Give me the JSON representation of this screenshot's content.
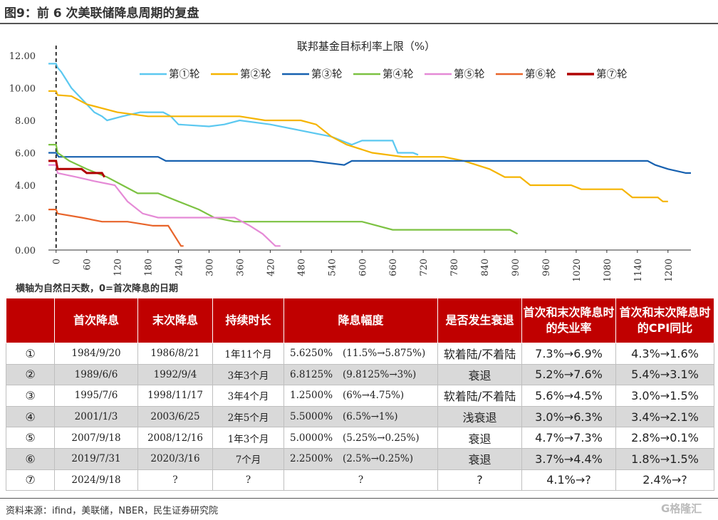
{
  "figure_title": "图9：前 6 次美联储降息周期的复盘",
  "axis_note": "横轴为自然日天数，0=首次降息的日期",
  "source": "资料来源：ifind，美联储，NBER，民生证券研究院",
  "watermark": "格隆汇",
  "colors": {
    "header_bg": "#c00000",
    "stripe": "#d9d9d9"
  },
  "chart_data": {
    "type": "line",
    "title": "联邦基金目标利率上限（%）",
    "xlim": [
      -15,
      1245
    ],
    "ylim": [
      0,
      12
    ],
    "x_ticks": [
      0,
      60,
      120,
      180,
      240,
      300,
      360,
      420,
      480,
      540,
      600,
      660,
      720,
      780,
      840,
      900,
      960,
      1020,
      1080,
      1140,
      1200
    ],
    "y_ticks": [
      "0.00",
      "2.00",
      "4.00",
      "6.00",
      "8.00",
      "10.00",
      "12.00"
    ],
    "vline_x": 0,
    "legend_position": "top",
    "series": [
      {
        "name": "第①轮",
        "color": "#5bc8f0",
        "points": [
          [
            -30,
            11.5
          ],
          [
            0,
            11.5
          ],
          [
            3,
            11.25
          ],
          [
            10,
            11.0
          ],
          [
            20,
            10.5
          ],
          [
            30,
            10.0
          ],
          [
            45,
            9.5
          ],
          [
            60,
            9.0
          ],
          [
            75,
            8.5
          ],
          [
            90,
            8.25
          ],
          [
            100,
            8.0
          ],
          [
            130,
            8.25
          ],
          [
            165,
            8.5
          ],
          [
            210,
            8.5
          ],
          [
            225,
            8.25
          ],
          [
            240,
            7.75
          ],
          [
            300,
            7.625
          ],
          [
            330,
            7.75
          ],
          [
            360,
            8.0
          ],
          [
            420,
            7.75
          ],
          [
            540,
            7.0
          ],
          [
            580,
            6.5
          ],
          [
            600,
            6.75
          ],
          [
            660,
            6.75
          ],
          [
            670,
            6.0
          ],
          [
            700,
            6.0
          ],
          [
            710,
            5.875
          ]
        ]
      },
      {
        "name": "第②轮",
        "color": "#f5b400",
        "points": [
          [
            -30,
            9.8125
          ],
          [
            0,
            9.8125
          ],
          [
            3,
            9.5625
          ],
          [
            30,
            9.5
          ],
          [
            60,
            9.0
          ],
          [
            120,
            8.5
          ],
          [
            180,
            8.25
          ],
          [
            240,
            8.25
          ],
          [
            360,
            8.25
          ],
          [
            410,
            8.0
          ],
          [
            480,
            8.0
          ],
          [
            510,
            7.75
          ],
          [
            540,
            7.0
          ],
          [
            570,
            6.5
          ],
          [
            620,
            6.0
          ],
          [
            680,
            5.75
          ],
          [
            760,
            5.75
          ],
          [
            800,
            5.5
          ],
          [
            850,
            5.0
          ],
          [
            880,
            4.5
          ],
          [
            910,
            4.5
          ],
          [
            930,
            4.0
          ],
          [
            1010,
            4.0
          ],
          [
            1030,
            3.75
          ],
          [
            1110,
            3.75
          ],
          [
            1130,
            3.25
          ],
          [
            1180,
            3.25
          ],
          [
            1190,
            3.0
          ],
          [
            1200,
            3.0
          ]
        ]
      },
      {
        "name": "第③轮",
        "color": "#1761b0",
        "points": [
          [
            -30,
            6.0
          ],
          [
            0,
            6.0
          ],
          [
            5,
            5.75
          ],
          [
            200,
            5.75
          ],
          [
            215,
            5.5
          ],
          [
            420,
            5.5
          ],
          [
            500,
            5.5
          ],
          [
            565,
            5.25
          ],
          [
            580,
            5.5
          ],
          [
            1160,
            5.5
          ],
          [
            1175,
            5.25
          ],
          [
            1200,
            5.0
          ],
          [
            1235,
            4.75
          ],
          [
            1245,
            4.75
          ]
        ]
      },
      {
        "name": "第④轮",
        "color": "#7cc242",
        "points": [
          [
            -30,
            6.5
          ],
          [
            0,
            6.5
          ],
          [
            3,
            6.0
          ],
          [
            26,
            5.5
          ],
          [
            60,
            5.0
          ],
          [
            100,
            4.5
          ],
          [
            130,
            4.0
          ],
          [
            160,
            3.5
          ],
          [
            200,
            3.5
          ],
          [
            240,
            3.0
          ],
          [
            280,
            2.5
          ],
          [
            310,
            2.0
          ],
          [
            350,
            1.75
          ],
          [
            410,
            1.75
          ],
          [
            600,
            1.75
          ],
          [
            660,
            1.25
          ],
          [
            890,
            1.25
          ],
          [
            905,
            1.0
          ]
        ]
      },
      {
        "name": "第⑤轮",
        "color": "#e58ad6",
        "points": [
          [
            -30,
            5.25
          ],
          [
            0,
            5.25
          ],
          [
            3,
            4.75
          ],
          [
            40,
            4.5
          ],
          [
            75,
            4.25
          ],
          [
            115,
            4.0
          ],
          [
            140,
            3.0
          ],
          [
            170,
            2.25
          ],
          [
            200,
            2.0
          ],
          [
            260,
            2.0
          ],
          [
            350,
            2.0
          ],
          [
            380,
            1.5
          ],
          [
            405,
            1.0
          ],
          [
            430,
            0.25
          ],
          [
            440,
            0.25
          ]
        ]
      },
      {
        "name": "第⑥轮",
        "color": "#e8642a",
        "points": [
          [
            -30,
            2.5
          ],
          [
            0,
            2.5
          ],
          [
            3,
            2.25
          ],
          [
            50,
            2.0
          ],
          [
            90,
            1.75
          ],
          [
            140,
            1.75
          ],
          [
            190,
            1.5
          ],
          [
            220,
            1.5
          ],
          [
            230,
            1.0
          ],
          [
            245,
            0.25
          ],
          [
            250,
            0.25
          ]
        ]
      },
      {
        "name": "第⑦轮",
        "color": "#b00000",
        "points": [
          [
            -30,
            5.5
          ],
          [
            0,
            5.5
          ],
          [
            3,
            5.0
          ],
          [
            50,
            5.0
          ],
          [
            60,
            4.75
          ],
          [
            90,
            4.75
          ],
          [
            95,
            4.5
          ]
        ]
      }
    ]
  },
  "table": {
    "headers": [
      "",
      "首次降息",
      "末次降息",
      "持续时长",
      "降息幅度",
      "是否发生衰退",
      "首次和末次降息时的失业率",
      "首次和末次降息时的CPI同比"
    ],
    "rows": [
      {
        "id": "①",
        "first": "1984/9/20",
        "last": "1986/8/21",
        "duration": "1年11个月",
        "amp_pct": "5.6250%",
        "amp_range": "(11.5%→5.875%)",
        "recession": "软着陆/不着陆",
        "unemp": "7.3%→6.9%",
        "cpi": "4.3%→1.6%"
      },
      {
        "id": "②",
        "first": "1989/6/6",
        "last": "1992/9/4",
        "duration": "3年3个月",
        "amp_pct": "6.8125%",
        "amp_range": "(9.8125%→3%)",
        "recession": "衰退",
        "unemp": "5.2%→7.6%",
        "cpi": "5.4%→3.1%"
      },
      {
        "id": "③",
        "first": "1995/7/6",
        "last": "1998/11/17",
        "duration": "3年4个月",
        "amp_pct": "1.2500%",
        "amp_range": "(6%→4.75%)",
        "recession": "软着陆/不着陆",
        "unemp": "5.6%→4.5%",
        "cpi": "3.0%→1.5%"
      },
      {
        "id": "④",
        "first": "2001/1/3",
        "last": "2003/6/25",
        "duration": "2年5个月",
        "amp_pct": "5.5000%",
        "amp_range": "(6.5%→1%)",
        "recession": "浅衰退",
        "unemp": "3.0%→6.3%",
        "cpi": "3.4%→2.1%"
      },
      {
        "id": "⑤",
        "first": "2007/9/18",
        "last": "2008/12/16",
        "duration": "1年3个月",
        "amp_pct": "5.0000%",
        "amp_range": "(5.25%→0.25%)",
        "recession": "衰退",
        "unemp": "4.7%→7.3%",
        "cpi": "2.8%→0.1%"
      },
      {
        "id": "⑥",
        "first": "2019/7/31",
        "last": "2020/3/16",
        "duration": "7个月",
        "amp_pct": "2.2500%",
        "amp_range": "(2.5%→0.25%)",
        "recession": "衰退",
        "unemp": "3.7%→4.4%",
        "cpi": "1.8%→1.5%"
      },
      {
        "id": "⑦",
        "first": "2024/9/18",
        "last": "?",
        "duration": "?",
        "amp_pct": "",
        "amp_range": "?",
        "recession": "?",
        "unemp": "4.1%→?",
        "cpi": "2.4%→?"
      }
    ]
  }
}
